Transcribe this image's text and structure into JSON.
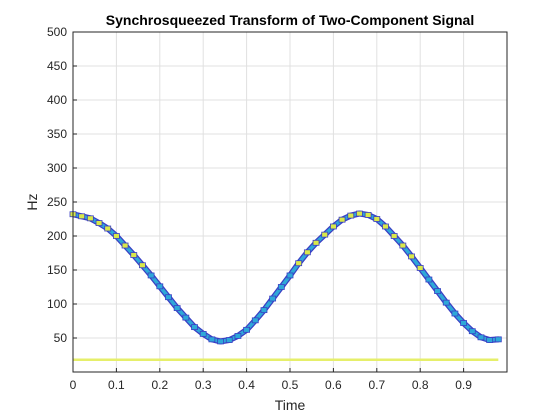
{
  "chart_data": {
    "type": "scatter",
    "title": "Synchrosqueezed Transform of Two-Component Signal",
    "xlabel": "Time",
    "ylabel": "Hz",
    "xlim": [
      0,
      1
    ],
    "ylim": [
      0,
      500
    ],
    "xticks": [
      "0",
      "0.1",
      "0.2",
      "0.3",
      "0.4",
      "0.5",
      "0.6",
      "0.7",
      "0.8",
      "0.9"
    ],
    "xtick_values": [
      0,
      0.1,
      0.2,
      0.3,
      0.4,
      0.5,
      0.6,
      0.7,
      0.8,
      0.9
    ],
    "yticks": [
      "50",
      "100",
      "150",
      "200",
      "250",
      "300",
      "350",
      "400",
      "450",
      "500"
    ],
    "ytick_values": [
      50,
      100,
      150,
      200,
      250,
      300,
      350,
      400,
      450,
      500
    ],
    "grid": true,
    "series": [
      {
        "description": "chirp ridge",
        "x": [
          0.0,
          0.02,
          0.04,
          0.06,
          0.08,
          0.1,
          0.12,
          0.14,
          0.16,
          0.18,
          0.2,
          0.22,
          0.24,
          0.26,
          0.28,
          0.3,
          0.32,
          0.34,
          0.36,
          0.38,
          0.4,
          0.42,
          0.44,
          0.46,
          0.48,
          0.5,
          0.52,
          0.54,
          0.56,
          0.58,
          0.6,
          0.62,
          0.64,
          0.66,
          0.68,
          0.7,
          0.72,
          0.74,
          0.76,
          0.78,
          0.8,
          0.82,
          0.84,
          0.86,
          0.88,
          0.9,
          0.92,
          0.94,
          0.96,
          0.98
        ],
        "y": [
          232,
          229,
          226,
          219,
          211,
          200,
          186,
          172,
          157,
          142,
          126,
          110,
          94,
          80,
          66,
          56,
          48,
          45,
          47,
          53,
          62,
          76,
          91,
          108,
          125,
          142,
          160,
          176,
          190,
          202,
          214,
          224,
          230,
          233,
          231,
          225,
          214,
          200,
          186,
          170,
          153,
          136,
          119,
          102,
          86,
          72,
          60,
          51,
          47,
          48
        ]
      },
      {
        "description": "constant tone",
        "x": [
          0.0,
          0.98
        ],
        "y": [
          18,
          18
        ]
      }
    ],
    "colors": {
      "ridge_edge": "#3a3fc4",
      "ridge_mid": "#2ea8d8",
      "ridge_peak": "#d8e84a",
      "tone": "#e6ef6a",
      "grid": "#e0e0e0",
      "axis": "#262626"
    }
  }
}
